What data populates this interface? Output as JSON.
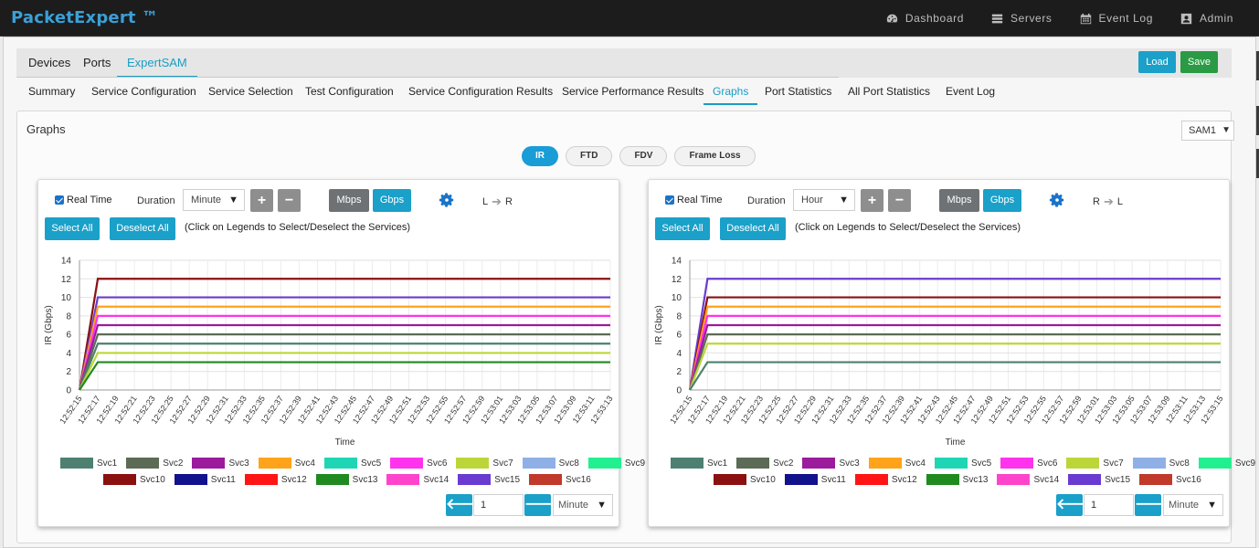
{
  "app": {
    "brand": "PacketExpert ™"
  },
  "topnav": [
    {
      "label": "Dashboard",
      "icon": "dashboard-icon"
    },
    {
      "label": "Servers",
      "icon": "servers-icon"
    },
    {
      "label": "Event Log",
      "icon": "calendar-icon"
    },
    {
      "label": "Admin",
      "icon": "user-icon"
    }
  ],
  "tabs_primary": [
    {
      "label": "Devices",
      "active": false
    },
    {
      "label": "Ports",
      "active": false
    },
    {
      "label": "ExpertSAM",
      "active": true
    }
  ],
  "tabs_secondary": [
    {
      "label": "Summary",
      "active": false
    },
    {
      "label": "Service Configuration",
      "active": false
    },
    {
      "label": "Service Selection",
      "active": false
    },
    {
      "label": "Test Configuration",
      "active": false
    },
    {
      "label": "Service Configuration Results",
      "active": false
    },
    {
      "label": "Service Performance Results",
      "active": false
    },
    {
      "label": "Graphs",
      "active": true
    },
    {
      "label": "Port Statistics",
      "active": false
    },
    {
      "label": "All Port Statistics",
      "active": false
    },
    {
      "label": "Event Log",
      "active": false
    }
  ],
  "actions": {
    "load": "Load",
    "save": "Save"
  },
  "side_widgets": [
    {
      "icon": "ethernet-port-icon",
      "color": "#29b6e6"
    },
    {
      "icon": "signal-wave-icon",
      "color": "#e8d51a"
    },
    {
      "icon": "play-icon",
      "color": "#e53935"
    }
  ],
  "graphs": {
    "title": "Graphs",
    "sam_select": "SAM1",
    "metric_tabs": [
      {
        "label": "IR",
        "active": true
      },
      {
        "label": "FTD",
        "active": false
      },
      {
        "label": "FDV",
        "active": false
      },
      {
        "label": "Frame Loss",
        "active": false
      }
    ],
    "hint": "(Click on Legends to Select/Deselect the Services)",
    "real_time_label": "Real Time",
    "duration_label": "Duration",
    "select_all": "Select All",
    "deselect_all": "Deselect All",
    "unit_mbps": "Mbps",
    "unit_gbps": "Gbps",
    "plus": "+",
    "minus": "−",
    "arrow_left": "🡐",
    "arrow_right": "🡒"
  },
  "services": [
    {
      "name": "Svc1",
      "color": "#4d8070"
    },
    {
      "name": "Svc2",
      "color": "#5b6b55"
    },
    {
      "name": "Svc3",
      "color": "#9c1a9c"
    },
    {
      "name": "Svc4",
      "color": "#ffa31a"
    },
    {
      "name": "Svc5",
      "color": "#1fd6b4"
    },
    {
      "name": "Svc6",
      "color": "#ff33ee"
    },
    {
      "name": "Svc7",
      "color": "#bcd63a"
    },
    {
      "name": "Svc8",
      "color": "#8fb0e6"
    },
    {
      "name": "Svc9",
      "color": "#22f090"
    },
    {
      "name": "Svc10",
      "color": "#8b1010"
    },
    {
      "name": "Svc11",
      "color": "#12128c"
    },
    {
      "name": "Svc12",
      "color": "#ff1515"
    },
    {
      "name": "Svc13",
      "color": "#1f8a1f"
    },
    {
      "name": "Svc14",
      "color": "#ff44cc"
    },
    {
      "name": "Svc15",
      "color": "#6a3bd1"
    },
    {
      "name": "Svc16",
      "color": "#c0392b"
    }
  ],
  "charts": [
    {
      "direction_from": "L",
      "direction_to": "R",
      "duration": "Minute",
      "page": "1",
      "page_unit": "Minute",
      "chart_data": {
        "type": "line",
        "xlabel": "Time",
        "ylabel": "IR (Gbps)",
        "ylim": [
          0,
          14
        ],
        "yticks": [
          0,
          2,
          4,
          6,
          8,
          10,
          12,
          14
        ],
        "x": [
          "12:52:15",
          "12:52:17",
          "12:52:19",
          "12:52:21",
          "12:52:23",
          "12:52:25",
          "12:52:27",
          "12:52:29",
          "12:52:31",
          "12:52:33",
          "12:52:35",
          "12:52:37",
          "12:52:39",
          "12:52:41",
          "12:52:43",
          "12:52:45",
          "12:52:47",
          "12:52:49",
          "12:52:51",
          "12:52:53",
          "12:52:55",
          "12:52:57",
          "12:52:59",
          "12:53:01",
          "12:53:03",
          "12:53:05",
          "12:53:07",
          "12:53:09",
          "12:53:11",
          "12:53:13"
        ],
        "series": [
          {
            "name": "Svc10",
            "color": "#8b1010",
            "start": 0,
            "steady": 12
          },
          {
            "name": "Svc15",
            "color": "#6a3bd1",
            "start": 0,
            "steady": 10
          },
          {
            "name": "Svc4",
            "color": "#ffa31a",
            "start": 0,
            "steady": 9
          },
          {
            "name": "Svc6",
            "color": "#ff33ee",
            "start": 0,
            "steady": 8
          },
          {
            "name": "Svc3",
            "color": "#9c1a9c",
            "start": 0,
            "steady": 7
          },
          {
            "name": "Svc2",
            "color": "#5b6b55",
            "start": 0,
            "steady": 6
          },
          {
            "name": "Svc1",
            "color": "#4d8070",
            "start": 0,
            "steady": 5
          },
          {
            "name": "Svc7",
            "color": "#bcd63a",
            "start": 0,
            "steady": 4
          },
          {
            "name": "Svc13",
            "color": "#1f8a1f",
            "start": 0,
            "steady": 3
          }
        ]
      }
    },
    {
      "direction_from": "R",
      "direction_to": "L",
      "duration": "Hour",
      "page": "1",
      "page_unit": "Minute",
      "chart_data": {
        "type": "line",
        "xlabel": "Time",
        "ylabel": "IR (Gbps)",
        "ylim": [
          0,
          14
        ],
        "yticks": [
          0,
          2,
          4,
          6,
          8,
          10,
          12,
          14
        ],
        "x": [
          "12:52:15",
          "12:52:17",
          "12:52:19",
          "12:52:21",
          "12:52:23",
          "12:52:25",
          "12:52:27",
          "12:52:29",
          "12:52:31",
          "12:52:33",
          "12:52:35",
          "12:52:37",
          "12:52:39",
          "12:52:41",
          "12:52:43",
          "12:52:45",
          "12:52:47",
          "12:52:49",
          "12:52:51",
          "12:52:53",
          "12:52:55",
          "12:52:57",
          "12:52:59",
          "12:53:01",
          "12:53:03",
          "12:53:05",
          "12:53:07",
          "12:53:09",
          "12:53:11",
          "12:53:13",
          "12:53:15"
        ],
        "series": [
          {
            "name": "Svc15",
            "color": "#6a3bd1",
            "start": 0,
            "steady": 12
          },
          {
            "name": "Svc10",
            "color": "#8b1010",
            "start": 0,
            "steady": 10
          },
          {
            "name": "Svc4",
            "color": "#ffa31a",
            "start": 0,
            "steady": 9
          },
          {
            "name": "Svc6",
            "color": "#ff33ee",
            "start": 0,
            "steady": 8
          },
          {
            "name": "Svc3",
            "color": "#9c1a9c",
            "start": 0,
            "steady": 7
          },
          {
            "name": "Svc2",
            "color": "#5b6b55",
            "start": 0,
            "steady": 6
          },
          {
            "name": "Svc7",
            "color": "#bcd63a",
            "start": 0,
            "steady": 5
          },
          {
            "name": "Svc1",
            "color": "#4d8070",
            "start": 0,
            "steady": 3
          }
        ]
      }
    }
  ]
}
